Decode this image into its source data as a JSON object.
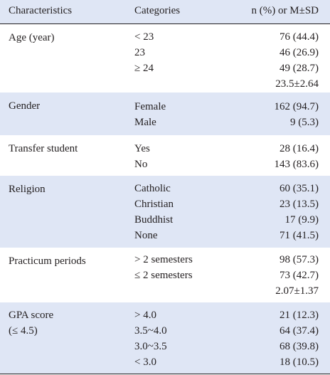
{
  "header": {
    "characteristics": "Characteristics",
    "categories": "Categories",
    "value": "n (%) or M±SD"
  },
  "groups": [
    {
      "label": "Age (year)",
      "rows": [
        {
          "category": "< 23",
          "value": "76 (44.4)"
        },
        {
          "category": "23",
          "value": "46 (26.9)"
        },
        {
          "category": "≥ 24",
          "value": "49 (28.7)"
        },
        {
          "category": "",
          "value": "23.5±2.64"
        }
      ]
    },
    {
      "label": "Gender",
      "rows": [
        {
          "category": "Female",
          "value": "162 (94.7)"
        },
        {
          "category": "Male",
          "value": "9 (5.3)"
        }
      ]
    },
    {
      "label": "Transfer student",
      "rows": [
        {
          "category": "Yes",
          "value": "28 (16.4)"
        },
        {
          "category": "No",
          "value": "143 (83.6)"
        }
      ]
    },
    {
      "label": "Religion",
      "rows": [
        {
          "category": "Catholic",
          "value": "60 (35.1)"
        },
        {
          "category": "Christian",
          "value": "23 (13.5)"
        },
        {
          "category": "Buddhist",
          "value": "17 (9.9)"
        },
        {
          "category": "None",
          "value": "71 (41.5)"
        }
      ]
    },
    {
      "label": "Practicum periods",
      "rows": [
        {
          "category": "> 2 semesters",
          "value": "98 (57.3)"
        },
        {
          "category": "≤ 2 semesters",
          "value": "73 (42.7)"
        },
        {
          "category": "",
          "value": "2.07±1.37"
        }
      ]
    },
    {
      "label": "GPA score\n(≤ 4.5)",
      "rows": [
        {
          "category": "> 4.0",
          "value": "21 (12.3)"
        },
        {
          "category": "3.5~4.0",
          "value": "64 (37.4)"
        },
        {
          "category": "3.0~3.5",
          "value": "68 (39.8)"
        },
        {
          "category": "< 3.0",
          "value": "18 (10.5)"
        }
      ]
    }
  ]
}
